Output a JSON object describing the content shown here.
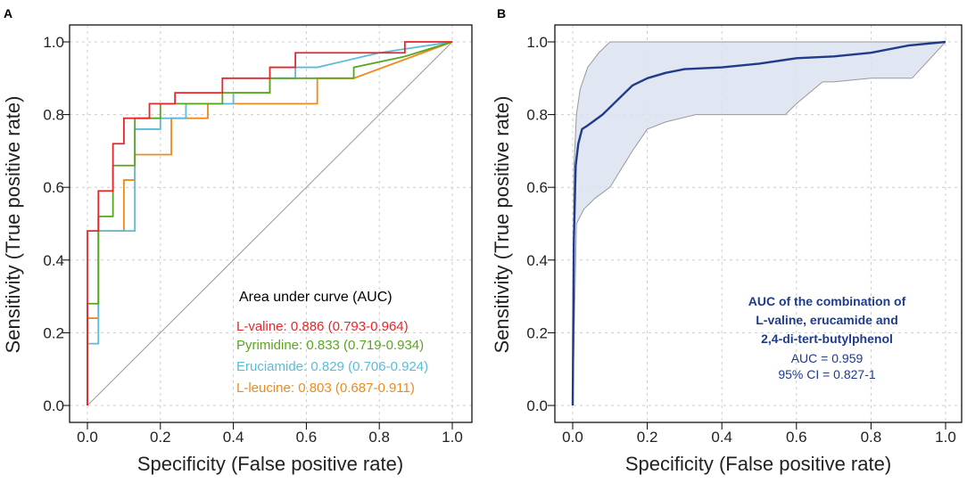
{
  "chart_data": [
    {
      "panel_label": "A",
      "type": "line",
      "xlabel": "Specificity (False positive rate)",
      "ylabel": "Sensitivity (True positive rate)",
      "xlim": [
        0,
        1
      ],
      "ylim": [
        0,
        1
      ],
      "xticks": [
        "0.0",
        "0.2",
        "0.4",
        "0.6",
        "0.8",
        "1.0"
      ],
      "yticks": [
        "0.0",
        "0.2",
        "0.4",
        "0.6",
        "0.8",
        "1.0"
      ],
      "grid": true,
      "legend_title": "Area under curve (AUC)",
      "legend_position": "bottom-right",
      "series": [
        {
          "name": "L-valine",
          "label": "L-valine: 0.886 (0.793-0.964)",
          "color": "#e8262b",
          "x": [
            0,
            0,
            0.03,
            0.03,
            0.07,
            0.07,
            0.1,
            0.1,
            0.17,
            0.17,
            0.24,
            0.24,
            0.37,
            0.37,
            0.5,
            0.5,
            0.57,
            0.57,
            0.87,
            0.87,
            1
          ],
          "y": [
            0,
            0.48,
            0.48,
            0.59,
            0.59,
            0.72,
            0.72,
            0.79,
            0.79,
            0.83,
            0.83,
            0.86,
            0.86,
            0.9,
            0.9,
            0.93,
            0.93,
            0.97,
            0.97,
            1,
            1
          ]
        },
        {
          "name": "Pyrimidine",
          "label": "Pyrimidine: 0.833 (0.719-0.934)",
          "color": "#5aa51e",
          "x": [
            0,
            0,
            0.03,
            0.03,
            0.07,
            0.07,
            0.13,
            0.13,
            0.2,
            0.2,
            0.37,
            0.37,
            0.5,
            0.5,
            0.73,
            0.73,
            0.87,
            1
          ],
          "y": [
            0,
            0.28,
            0.28,
            0.52,
            0.52,
            0.66,
            0.66,
            0.79,
            0.79,
            0.83,
            0.83,
            0.86,
            0.86,
            0.9,
            0.9,
            0.93,
            0.96,
            1
          ]
        },
        {
          "name": "Eruciamide",
          "label": "Eruciamide: 0.829 (0.706-0.924)",
          "color": "#5bbbd8",
          "x": [
            0,
            0,
            0.03,
            0.03,
            0.13,
            0.13,
            0.2,
            0.2,
            0.27,
            0.27,
            0.4,
            0.4,
            0.5,
            0.5,
            0.57,
            0.57,
            0.63,
            0.63,
            0.8,
            1
          ],
          "y": [
            0,
            0.17,
            0.17,
            0.48,
            0.48,
            0.76,
            0.76,
            0.79,
            0.79,
            0.83,
            0.83,
            0.86,
            0.86,
            0.9,
            0.9,
            0.93,
            0.93,
            0.93,
            0.97,
            1
          ]
        },
        {
          "name": "L-leucine",
          "label": "L-leucine: 0.803 (0.687-0.911)",
          "color": "#ef8a1c",
          "x": [
            0,
            0,
            0.03,
            0.03,
            0.1,
            0.1,
            0.13,
            0.13,
            0.23,
            0.23,
            0.33,
            0.33,
            0.63,
            0.63,
            0.73,
            1
          ],
          "y": [
            0,
            0.24,
            0.24,
            0.48,
            0.48,
            0.62,
            0.62,
            0.69,
            0.69,
            0.79,
            0.79,
            0.83,
            0.83,
            0.9,
            0.9,
            1
          ]
        }
      ],
      "reference_line": {
        "x": [
          0,
          1
        ],
        "y": [
          0,
          1
        ],
        "color": "#999999"
      }
    },
    {
      "panel_label": "B",
      "type": "area",
      "xlabel": "Specificity (False positive rate)",
      "ylabel": "Sensitivity (True positive rate)",
      "xlim": [
        0,
        1
      ],
      "ylim": [
        0,
        1
      ],
      "xticks": [
        "0.0",
        "0.2",
        "0.4",
        "0.6",
        "0.8",
        "1.0"
      ],
      "yticks": [
        "0.0",
        "0.2",
        "0.4",
        "0.6",
        "0.8",
        "1.0"
      ],
      "grid": true,
      "line_color": "#1f3b8a",
      "band_fill": "#dbe2f0",
      "band_stroke": "#999999",
      "curve": {
        "x": [
          0,
          0.003,
          0.008,
          0.015,
          0.025,
          0.04,
          0.06,
          0.08,
          0.1,
          0.13,
          0.16,
          0.2,
          0.25,
          0.3,
          0.4,
          0.5,
          0.6,
          0.7,
          0.8,
          0.9,
          1.0
        ],
        "y": [
          0,
          0.45,
          0.66,
          0.72,
          0.76,
          0.77,
          0.785,
          0.8,
          0.82,
          0.85,
          0.88,
          0.9,
          0.915,
          0.925,
          0.93,
          0.94,
          0.955,
          0.96,
          0.97,
          0.99,
          1.0
        ]
      },
      "ci_upper": {
        "x": [
          0,
          0.003,
          0.01,
          0.02,
          0.04,
          0.07,
          0.1,
          0.2,
          0.5,
          0.8,
          1.0
        ],
        "y": [
          0,
          0.65,
          0.8,
          0.87,
          0.93,
          0.97,
          1.0,
          1.0,
          1.0,
          1.0,
          1.0
        ]
      },
      "ci_lower": {
        "x": [
          0,
          0.01,
          0.03,
          0.06,
          0.1,
          0.13,
          0.16,
          0.2,
          0.25,
          0.33,
          0.4,
          0.57,
          0.6,
          0.67,
          0.7,
          0.8,
          0.9,
          0.91,
          1.0
        ],
        "y": [
          0,
          0.5,
          0.54,
          0.57,
          0.6,
          0.65,
          0.7,
          0.76,
          0.78,
          0.8,
          0.8,
          0.8,
          0.83,
          0.89,
          0.89,
          0.9,
          0.9,
          0.9,
          1.0
        ]
      },
      "annotation": {
        "line1": "AUC of the combination of",
        "line2": "L-valine, erucamide and",
        "line3": "2,4-di-tert-butylphenol",
        "auc": "AUC = 0.959",
        "ci": "95% CI = 0.827-1"
      }
    }
  ]
}
